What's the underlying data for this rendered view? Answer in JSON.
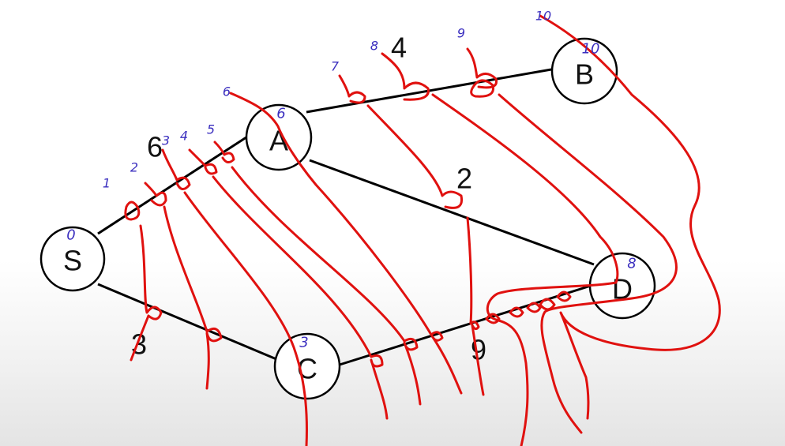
{
  "nodes": {
    "S": {
      "label": "S",
      "distance": "0"
    },
    "A": {
      "label": "A",
      "distance": "6"
    },
    "B": {
      "label": "B",
      "distance": "10"
    },
    "C": {
      "label": "C",
      "distance": "3"
    },
    "D": {
      "label": "D",
      "distance": "8"
    }
  },
  "edges": {
    "SA": {
      "weight": "6"
    },
    "SC": {
      "weight": "3"
    },
    "AB": {
      "weight": "4"
    },
    "AD": {
      "weight": "2"
    },
    "CD": {
      "weight": "9"
    }
  },
  "time_ticks": [
    "1",
    "2",
    "3",
    "4",
    "5",
    "6",
    "7",
    "8",
    "9",
    "10"
  ],
  "colors": {
    "annotation_red": "#e0110f",
    "annotation_purple": "#3b2fbf",
    "edge": "#000000"
  }
}
